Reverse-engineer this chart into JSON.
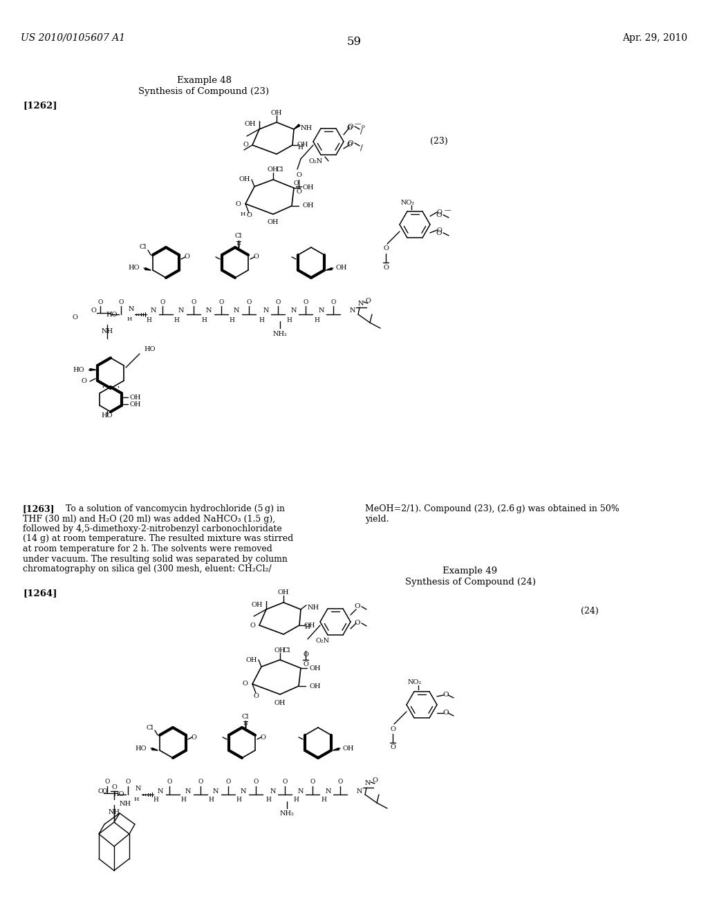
{
  "background_color": "#ffffff",
  "page_number": "59",
  "header_left": "US 2010/0105607 A1",
  "header_right": "Apr. 29, 2010",
  "example48_line1": "Example 48",
  "example48_line2": "Synthesis of Compound (23)",
  "label_1262": "[1262]",
  "compound23_label": "(23)",
  "para1263_col1": "[1263]   To a solution of vancomycin hydrochloride (5 g) in\nTHF (30 ml) and H₂O (20 ml) was added NaHCO₃ (1.5 g),\nfollowed by 4,5-dimethoxy-2-nitrobenzyl carbonochloridate\n(14 g) at room temperature. The resulted mixture was stirred\nat room temperature for 2 h. The solvents were removed\nunder vacuum. The resulting solid was separated by column\nchromatography on silica gel (300 mesh, eluent: CH₂Cl₂/",
  "para1263_col2": "MeOH=2/1). Compound (23), (2.6 g) was obtained in 50%\nyield.",
  "example49_line1": "Example 49",
  "example49_line2": "Synthesis of Compound (24)",
  "label_1264": "[1264]",
  "compound24_label": "(24)"
}
